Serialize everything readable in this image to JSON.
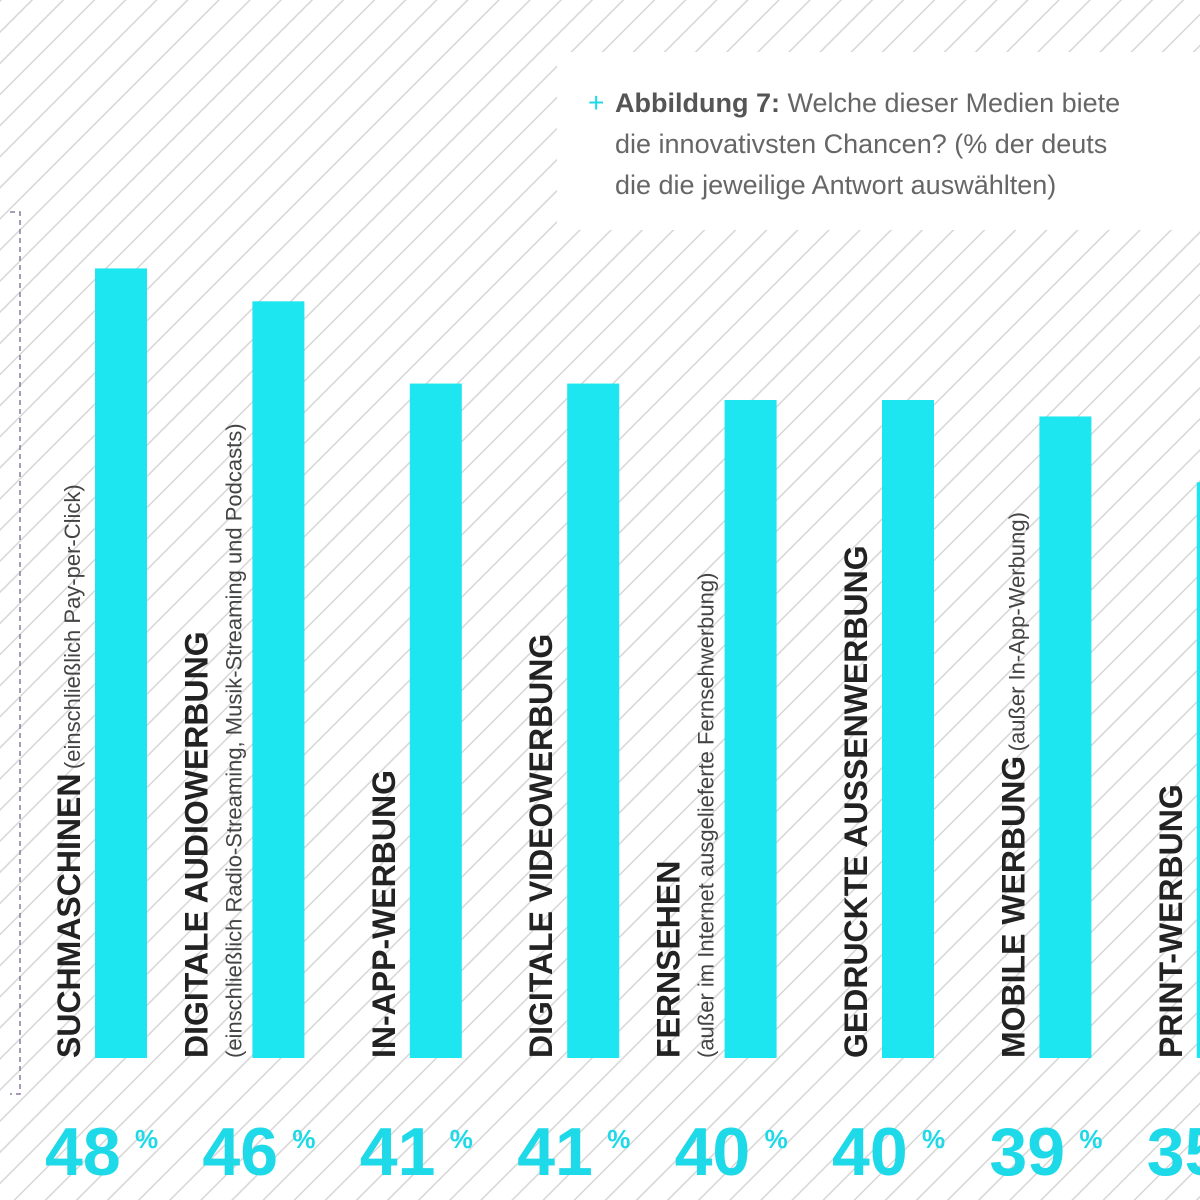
{
  "chart_data": {
    "type": "bar",
    "title_marker": "+",
    "title_label": "Abbildung 7:",
    "title_lines": [
      "Welche dieser Medien biete",
      "die innovativsten Chancen? (% der deuts",
      "die die jeweilige Antwort auswählten)"
    ],
    "categories": [
      "SUCHMASCHINEN",
      "DIGITALE AUDIOWERBUNG",
      "IN-APP-WERBUNG",
      "DIGITALE VIDEOWERBUNG",
      "FERNSEHEN",
      "GEDRUCKTE AUSSENWERBUNG",
      "MOBILE WERBUNG",
      "PRINT-WERBUNG"
    ],
    "category_notes": [
      "(einschließlich Pay-per-Click)",
      "(einschließlich Radio-Streaming, Musik-Streaming und Podcasts)",
      null,
      null,
      "(außer im Internet ausgelieferte Fernsehwerbung)",
      null,
      "(außer In-App-Werbung)",
      null
    ],
    "values": [
      48,
      46,
      41,
      41,
      40,
      40,
      39,
      35
    ],
    "unit": "%",
    "color": "#1ee6f0"
  }
}
